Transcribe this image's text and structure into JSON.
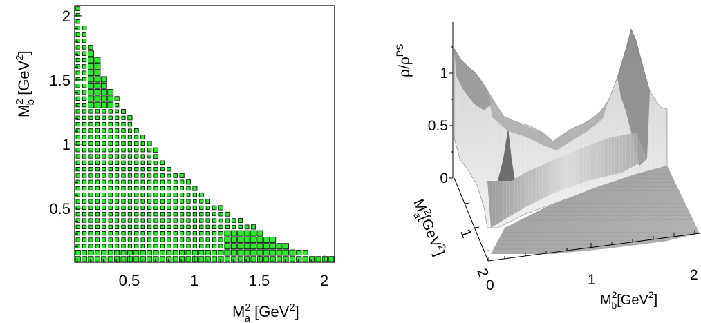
{
  "chart_data": [
    {
      "type": "scatter",
      "subtype": "box-histogram",
      "xlabel": {
        "base": "M",
        "sup": "2",
        "sub": "a",
        "unit_open": " [GeV",
        "unit_sup": "2",
        "unit_close": "]"
      },
      "ylabel": {
        "base": "M",
        "sup": "2",
        "sub": "b",
        "unit_open": " [GeV",
        "unit_sup": "2",
        "unit_close": "]"
      },
      "xlim": [
        0.08,
        2.08
      ],
      "ylim": [
        0.08,
        2.08
      ],
      "xticks": [
        0.5,
        1,
        1.5,
        2
      ],
      "xtick_labels": [
        "0.5",
        "1",
        "1.5",
        "2"
      ],
      "yticks": [
        0.5,
        1,
        1.5,
        2
      ],
      "ytick_labels": [
        "0.5",
        "1",
        "1.5",
        "2"
      ],
      "bin_width": 0.05,
      "fill_color": "#22ee22",
      "edge_color": "#000000",
      "boundary_upper_y": [
        [
          0.12,
          2.08
        ],
        [
          0.17,
          1.9
        ],
        [
          0.22,
          1.75
        ],
        [
          0.27,
          1.62
        ],
        [
          0.32,
          1.51
        ],
        [
          0.37,
          1.42
        ],
        [
          0.42,
          1.34
        ],
        [
          0.47,
          1.26
        ],
        [
          0.52,
          1.19
        ],
        [
          0.57,
          1.12
        ],
        [
          0.62,
          1.06
        ],
        [
          0.67,
          1.0
        ],
        [
          0.72,
          0.94
        ],
        [
          0.77,
          0.89
        ],
        [
          0.82,
          0.84
        ],
        [
          0.87,
          0.79
        ],
        [
          0.92,
          0.75
        ],
        [
          0.97,
          0.7
        ],
        [
          1.02,
          0.66
        ],
        [
          1.07,
          0.62
        ],
        [
          1.12,
          0.58
        ],
        [
          1.17,
          0.54
        ],
        [
          1.22,
          0.51
        ],
        [
          1.27,
          0.47
        ],
        [
          1.32,
          0.44
        ],
        [
          1.37,
          0.41
        ],
        [
          1.42,
          0.38
        ],
        [
          1.47,
          0.35
        ],
        [
          1.52,
          0.32
        ],
        [
          1.57,
          0.29
        ],
        [
          1.62,
          0.26
        ],
        [
          1.67,
          0.24
        ],
        [
          1.72,
          0.21
        ],
        [
          1.77,
          0.19
        ],
        [
          1.82,
          0.17
        ],
        [
          1.87,
          0.15
        ],
        [
          1.92,
          0.15
        ],
        [
          1.97,
          0.15
        ],
        [
          2.02,
          0.15
        ],
        [
          2.07,
          0.15
        ]
      ],
      "enhanced_regions": [
        {
          "x": [
            0.2,
            0.4
          ],
          "y": [
            1.3,
            1.75
          ],
          "weight": 1.0
        },
        {
          "x": [
            1.25,
            1.8
          ],
          "y": [
            0.12,
            0.35
          ],
          "weight": 1.0
        },
        {
          "x": [
            0.08,
            2.08
          ],
          "y": [
            0.08,
            0.18
          ],
          "weight": 0.9
        }
      ]
    },
    {
      "type": "surface",
      "zlabel": {
        "base": "ρ/ρ",
        "sup": "PS"
      },
      "xlabel": {
        "base": "M",
        "sup": "2",
        "sub": "b",
        "unit_open": "[GeV",
        "unit_sup": "2",
        "unit_close": "]"
      },
      "ylabel": {
        "base": "M",
        "sup": "2",
        "sub": "a",
        "unit_open": "[GeV",
        "unit_sup": "2",
        "unit_close": "]"
      },
      "xticks": [
        0,
        1,
        2
      ],
      "xtick_labels": [
        "0",
        "1",
        "2"
      ],
      "yticks": [
        1,
        2
      ],
      "ytick_labels": [
        "1",
        "2"
      ],
      "zticks": [
        0,
        0.5,
        1
      ],
      "ztick_labels": [
        "0",
        "0.5",
        "1"
      ],
      "zlim": [
        0,
        1.45
      ],
      "surface_color": "#a9a9a9"
    }
  ]
}
